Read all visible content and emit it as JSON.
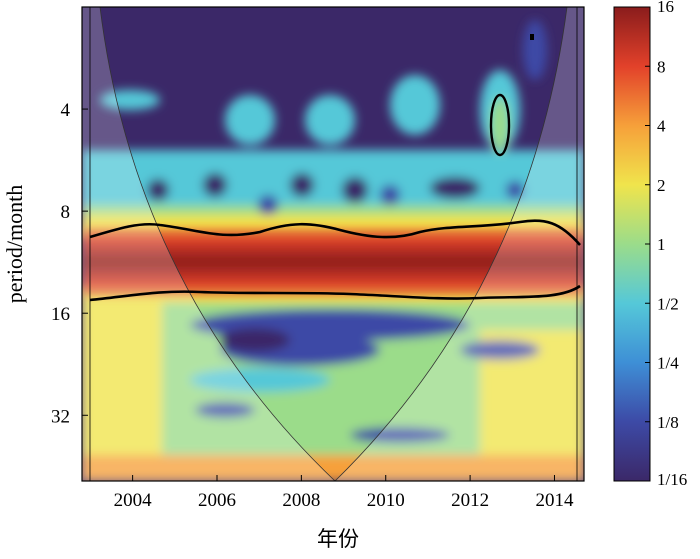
{
  "chart_data": {
    "type": "heatmap",
    "title": "",
    "xlabel": "年份",
    "ylabel": "period/month",
    "x_ticks": [
      "2004",
      "2006",
      "2008",
      "2010",
      "2012",
      "2014"
    ],
    "x_range": [
      2002.8,
      2014.7
    ],
    "y_scale": "log2",
    "y_ticks": [
      "4",
      "8",
      "16",
      "32"
    ],
    "y_range": [
      2,
      50
    ],
    "colorbar": {
      "scale": "log2",
      "range": [
        0.0625,
        16
      ],
      "tick_labels": [
        "16",
        "8",
        "4",
        "2",
        "1",
        "1/2",
        "1/4",
        "1/8",
        "1/16"
      ],
      "colormap": [
        "#3b2868",
        "#3d4aa6",
        "#3e8fd6",
        "#55c8d8",
        "#9bdc8a",
        "#f0e44c",
        "#f6a03a",
        "#e2412a",
        "#8a1c1c"
      ]
    },
    "features": {
      "dominant_band_period": [
        9,
        15
      ],
      "significance_contours": [
        {
          "period": [
            9,
            15
          ],
          "x": [
            2002.9,
            2014.6
          ]
        },
        {
          "period": [
            3.6,
            6.1
          ],
          "x": [
            2012.45,
            2012.75
          ]
        }
      ],
      "cone_of_influence": true
    }
  }
}
